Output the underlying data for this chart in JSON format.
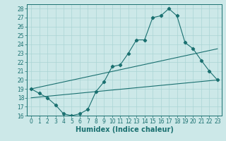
{
  "xlabel": "Humidex (Indice chaleur)",
  "bg_color": "#cce8e8",
  "line_color": "#1a7070",
  "xlim": [
    -0.5,
    23.5
  ],
  "ylim": [
    16,
    28.5
  ],
  "xticks": [
    0,
    1,
    2,
    3,
    4,
    5,
    6,
    7,
    8,
    9,
    10,
    11,
    12,
    13,
    14,
    15,
    16,
    17,
    18,
    19,
    20,
    21,
    22,
    23
  ],
  "yticks": [
    16,
    17,
    18,
    19,
    20,
    21,
    22,
    23,
    24,
    25,
    26,
    27,
    28
  ],
  "line1_x": [
    0,
    1,
    2,
    3,
    4,
    5,
    6,
    7,
    8,
    9,
    10,
    11,
    12,
    13,
    14,
    15,
    16,
    17,
    18,
    19,
    20,
    21,
    22,
    23
  ],
  "line1_y": [
    19.0,
    18.5,
    18.0,
    17.2,
    16.2,
    16.0,
    16.2,
    16.7,
    18.7,
    19.8,
    21.5,
    21.7,
    23.0,
    24.5,
    24.5,
    27.0,
    27.2,
    28.0,
    27.2,
    24.2,
    23.5,
    22.2,
    21.0,
    20.0
  ],
  "line2_x": [
    0,
    23
  ],
  "line2_y": [
    19.0,
    23.5
  ],
  "line3_x": [
    0,
    23
  ],
  "line3_y": [
    18.0,
    20.0
  ],
  "grid_color": "#aad4d4",
  "tick_fontsize": 5.5,
  "xlabel_fontsize": 7
}
